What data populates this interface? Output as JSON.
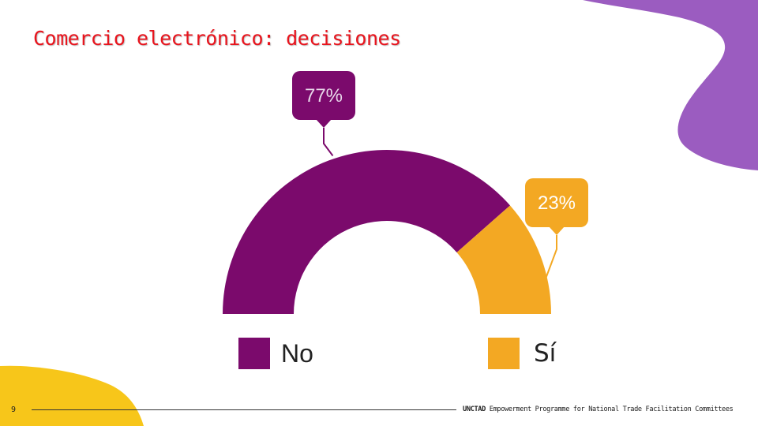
{
  "slide": {
    "title": "Comercio electrónico: decisiones",
    "page_number": "9",
    "footer_org": "UNCTAD",
    "footer_text": "Empowerment Programme for National Trade Facilitation Committees"
  },
  "colors": {
    "no": "#7b0a6c",
    "si": "#f3a823",
    "title": "#e8141d",
    "deco_purple": "#9b5cc0",
    "deco_yellow": "#f7c61a",
    "callout_no": "#7b0a6c",
    "callout_si": "#f3a823"
  },
  "chart_data": {
    "type": "pie",
    "variant": "half-donut",
    "title": "Comercio electrónico: decisiones",
    "categories": [
      "No",
      "Sí"
    ],
    "values": [
      77,
      23
    ],
    "unit": "%",
    "data_labels": [
      "77%",
      "23%"
    ],
    "legend": [
      "No",
      "Sí"
    ],
    "legend_position": "bottom"
  }
}
